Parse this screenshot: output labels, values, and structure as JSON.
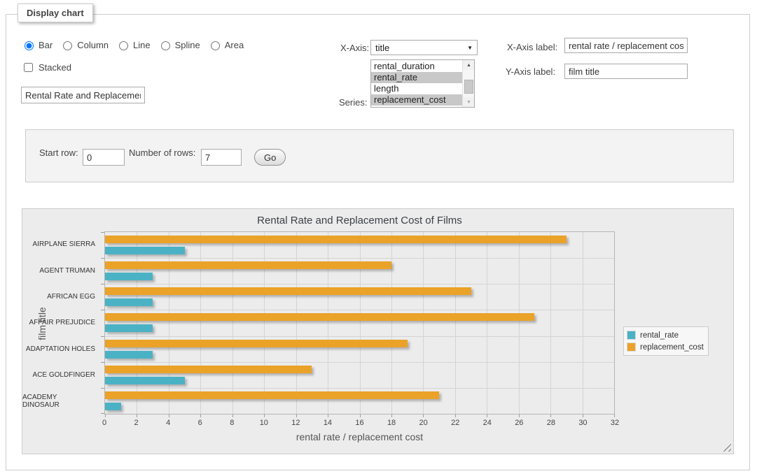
{
  "window": {
    "legend": "Display chart"
  },
  "icons": {
    "select_arrow": "▼",
    "scroll_up": "▲",
    "scroll_down": "▼"
  },
  "controls": {
    "chart_types": [
      {
        "label": "Bar",
        "selected": true
      },
      {
        "label": "Column",
        "selected": false
      },
      {
        "label": "Line",
        "selected": false
      },
      {
        "label": "Spline",
        "selected": false
      },
      {
        "label": "Area",
        "selected": false
      }
    ],
    "stacked": {
      "label": "Stacked",
      "checked": false
    },
    "title_input": {
      "value": "Rental Rate and Replacement Cost of Films"
    },
    "x_axis": {
      "label": "X-Axis:",
      "value": "title"
    },
    "series": {
      "label": "Series:",
      "options": [
        {
          "label": "rental_duration",
          "selected": false
        },
        {
          "label": "rental_rate",
          "selected": true
        },
        {
          "label": "length",
          "selected": false
        },
        {
          "label": "replacement_cost",
          "selected": true
        }
      ]
    },
    "x_axis_label": {
      "label": "X-Axis label:",
      "value": "rental rate / replacement cost"
    },
    "y_axis_label": {
      "label": "Y-Axis label:",
      "value": "film title"
    }
  },
  "pagination": {
    "start_row_label": "Start row:",
    "start_row_value": "0",
    "num_rows_label": "Number of rows:",
    "num_rows_value": "7",
    "go_label": "Go"
  },
  "chart_data": {
    "type": "bar",
    "orientation": "horizontal",
    "title": "Rental Rate and Replacement Cost of Films",
    "categories": [
      "AIRPLANE SIERRA",
      "AGENT TRUMAN",
      "AFRICAN EGG",
      "AFFAIR PREJUDICE",
      "ADAPTATION HOLES",
      "ACE GOLDFINGER",
      "ACADEMY DINOSAUR"
    ],
    "series": [
      {
        "name": "rental_rate",
        "color": "#4bb2c5",
        "values": [
          5,
          3,
          3,
          3,
          3,
          5,
          1
        ]
      },
      {
        "name": "replacement_cost",
        "color": "#eaa228",
        "values": [
          29,
          18,
          23,
          27,
          19,
          13,
          21
        ]
      }
    ],
    "xlabel": "rental rate / replacement cost",
    "ylabel": "film title",
    "xlim": [
      0,
      32
    ],
    "xtick_step": 2,
    "grid": true,
    "legend_position": "right",
    "background": "#ececec"
  }
}
